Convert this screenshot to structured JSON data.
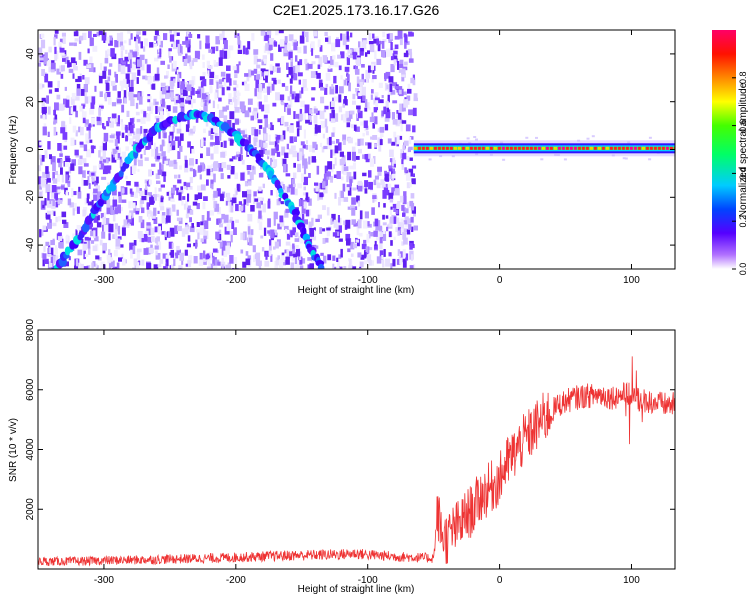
{
  "title": "C2E1.2025.173.16.17.G26",
  "colors": {
    "snr_line": "#ee3333",
    "frame": "#000000",
    "spectrogram_low": "#e4dcff",
    "spectrogram_mid": "#6a1cff"
  },
  "chart_data": [
    {
      "type": "heatmap",
      "xlabel": "Height of straight line (km)",
      "ylabel": "Frequency (Hz)",
      "xlim": [
        -350,
        133
      ],
      "ylim": [
        -50,
        50
      ],
      "x_ticks": [
        -300,
        -200,
        -100,
        0,
        100
      ],
      "x_tick_labels": [
        "-300",
        "-200",
        "-100",
        "0",
        "100"
      ],
      "y_ticks": [
        -40,
        -20,
        0,
        20,
        40
      ],
      "y_tick_labels": [
        "-40",
        "-20",
        "0",
        "20",
        "40"
      ],
      "grid": false,
      "dense_region_x": [
        -350,
        -65
      ],
      "curve_points": [
        {
          "x": -337,
          "y": -50
        },
        {
          "x": -320,
          "y": -38
        },
        {
          "x": -305,
          "y": -24
        },
        {
          "x": -290,
          "y": -12
        },
        {
          "x": -275,
          "y": 0
        },
        {
          "x": -260,
          "y": 9
        },
        {
          "x": -245,
          "y": 13
        },
        {
          "x": -230,
          "y": 15
        },
        {
          "x": -215,
          "y": 12
        },
        {
          "x": -200,
          "y": 6
        },
        {
          "x": -185,
          "y": -2
        },
        {
          "x": -170,
          "y": -13
        },
        {
          "x": -155,
          "y": -27
        },
        {
          "x": -145,
          "y": -40
        },
        {
          "x": -135,
          "y": -50
        }
      ],
      "carrier_band": {
        "x_start": -65,
        "x_end": 133,
        "freq": 0.5
      },
      "colorbar": {
        "label": "Normalized spectral amplitude",
        "range": [
          0,
          1
        ],
        "ticks": [
          0.0,
          0.2,
          0.4,
          0.6,
          0.8
        ],
        "tick_labels": [
          "0.0",
          "0.2",
          "0.4",
          "0.6",
          "0.8"
        ],
        "colors": [
          "#ffffff",
          "#8800ff",
          "#0000ff",
          "#00ddff",
          "#00ff44",
          "#ffff00",
          "#ff8800",
          "#ff0000",
          "#ff0088"
        ]
      }
    },
    {
      "type": "line",
      "xlabel": "Height of straight line (km)",
      "ylabel": "SNR (10 * v/v)",
      "xlim": [
        -350,
        133
      ],
      "ylim": [
        0,
        8000
      ],
      "x_ticks": [
        -300,
        -200,
        -100,
        0,
        100
      ],
      "x_tick_labels": [
        "-300",
        "-200",
        "-100",
        "0",
        "100"
      ],
      "y_ticks": [
        2000,
        4000,
        6000,
        8000
      ],
      "y_tick_labels": [
        "2000",
        "4000",
        "6000",
        "8000"
      ],
      "grid": false,
      "series": [
        {
          "x": [
            -350,
            -320,
            -300,
            -280,
            -260,
            -240,
            -220,
            -200,
            -180,
            -160,
            -140,
            -120,
            -110,
            -100,
            -80,
            -60,
            -50,
            -47,
            -44,
            -40,
            -35,
            -30,
            -25,
            -20,
            -15,
            -10,
            -5,
            0,
            5,
            10,
            15,
            20,
            25,
            30,
            35,
            40,
            45,
            50,
            55,
            60,
            65,
            70,
            75,
            80,
            85,
            90,
            95,
            100,
            105,
            110,
            115,
            120,
            125,
            133
          ],
          "y": [
            250,
            260,
            280,
            300,
            320,
            340,
            360,
            390,
            420,
            450,
            470,
            490,
            520,
            480,
            420,
            380,
            360,
            1900,
            1200,
            1000,
            1300,
            1500,
            1800,
            2000,
            2400,
            2600,
            2800,
            3000,
            3500,
            3800,
            4100,
            4400,
            4600,
            4900,
            5100,
            5300,
            5500,
            5600,
            5700,
            5750,
            5800,
            5800,
            5850,
            5800,
            5750,
            5800,
            5850,
            5800,
            5700,
            5650,
            5600,
            5550,
            5500,
            5500
          ]
        }
      ]
    }
  ]
}
